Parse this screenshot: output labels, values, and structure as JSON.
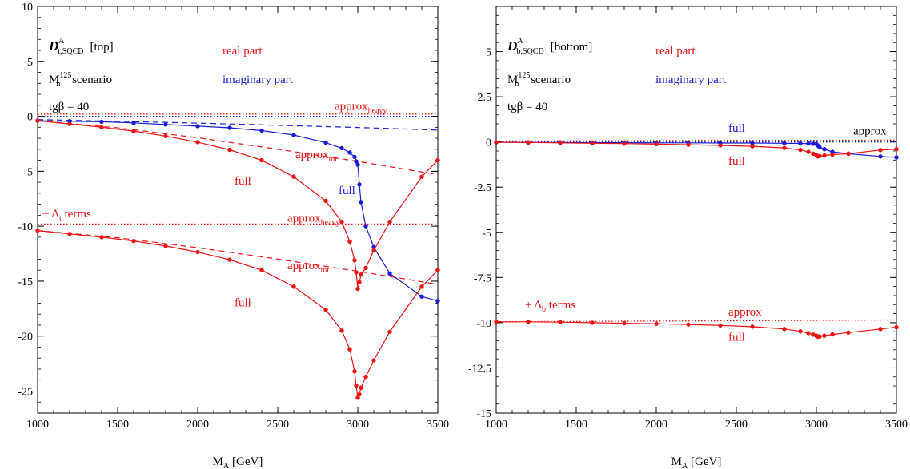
{
  "colors": {
    "real": "#ee1111",
    "imag": "#1a1ad8",
    "text": "#000000"
  },
  "chart_data": [
    {
      "type": "line",
      "panel": "left",
      "xlabel": "M_A [GeV]",
      "xlim": [
        1000,
        3500
      ],
      "ylim": [
        -27,
        10
      ],
      "xticks": [
        1000,
        1500,
        2000,
        2500,
        3000,
        3500
      ],
      "yticks": [
        10,
        5,
        0,
        -5,
        -10,
        -15,
        -20,
        -25
      ],
      "header": {
        "symbol": "D",
        "sup": "A",
        "sub": "t,SQCD",
        "tag": "[top]",
        "scenario_main": "M",
        "scenario_sub": "h",
        "scenario_sup": "125",
        "scenario_text": " scenario",
        "tgb": "tgβ = 40",
        "legend_real": "real part",
        "legend_imag": "imaginary part"
      },
      "annotations": [
        {
          "id": "approx-heavy-top",
          "text": "approx",
          "sub": "heavy",
          "x": 2855,
          "y": 0.6,
          "color": "real"
        },
        {
          "id": "approx-mt-top",
          "text": "approx",
          "sub": "mt",
          "x": 2610,
          "y": -3.8,
          "color": "real"
        },
        {
          "id": "full-real-top",
          "text": "full",
          "x": 2230,
          "y": -6.2,
          "color": "real"
        },
        {
          "id": "full-imag-top",
          "text": "full",
          "x": 2880,
          "y": -7.1,
          "color": "imag"
        },
        {
          "id": "delta-t-label",
          "text": "+ Δ",
          "sub": "t",
          "text_after": " terms",
          "x": 1030,
          "y": -9.2,
          "color": "real"
        },
        {
          "id": "approx-heavy-bottom",
          "text": "approx",
          "sub": "heavy",
          "x": 2560,
          "y": -9.6,
          "color": "real"
        },
        {
          "id": "approx-mt-bottom",
          "text": "approx",
          "sub": "mt",
          "x": 2560,
          "y": -13.9,
          "color": "real"
        },
        {
          "id": "full-real-bottom",
          "text": "full",
          "x": 2230,
          "y": -17.3,
          "color": "real"
        }
      ],
      "series": [
        {
          "id": "approx-heavy-real",
          "color": "real",
          "style": "dotted",
          "points": false,
          "x": [
            1000,
            3500
          ],
          "y": [
            0.2,
            0.2
          ]
        },
        {
          "id": "approx-heavy-imag",
          "color": "imag",
          "style": "dotted",
          "points": false,
          "x": [
            1000,
            3500
          ],
          "y": [
            0.0,
            0.0
          ]
        },
        {
          "id": "approx-heavy-real-delta",
          "color": "real",
          "style": "dotted",
          "points": false,
          "x": [
            1000,
            3500
          ],
          "y": [
            -9.8,
            -9.8
          ]
        },
        {
          "id": "imag-approx-mt",
          "color": "imag",
          "style": "dashed",
          "points": false,
          "x": [
            1000,
            1500,
            2000,
            2500,
            3000,
            3500
          ],
          "y": [
            -0.3,
            -0.45,
            -0.62,
            -0.82,
            -1.02,
            -1.25
          ]
        },
        {
          "id": "real-approx-mt",
          "color": "real",
          "style": "dashed",
          "points": false,
          "x": [
            1000,
            1500,
            2000,
            2500,
            3000,
            3500
          ],
          "y": [
            -0.4,
            -1.05,
            -1.95,
            -3.0,
            -4.1,
            -5.3
          ]
        },
        {
          "id": "real-approx-mt-delta",
          "color": "real",
          "style": "dashed",
          "points": false,
          "x": [
            1000,
            1500,
            2000,
            2500,
            3000,
            3500
          ],
          "y": [
            -10.4,
            -11.05,
            -11.95,
            -13.0,
            -14.1,
            -15.3
          ]
        },
        {
          "id": "imag-full",
          "color": "imag",
          "style": "solid",
          "points": true,
          "x": [
            1000,
            1200,
            1400,
            1600,
            1800,
            2000,
            2200,
            2400,
            2600,
            2800,
            2900,
            2950,
            2980,
            2990,
            3000,
            3010,
            3020,
            3050,
            3100,
            3200,
            3400,
            3500
          ],
          "y": [
            -0.4,
            -0.45,
            -0.5,
            -0.6,
            -0.75,
            -0.9,
            -1.05,
            -1.3,
            -1.7,
            -2.4,
            -2.9,
            -3.3,
            -3.7,
            -4.1,
            -4.4,
            -6.2,
            -7.8,
            -10.0,
            -11.9,
            -14.3,
            -16.4,
            -16.8
          ]
        },
        {
          "id": "real-full",
          "color": "real",
          "style": "solid",
          "points": true,
          "x": [
            1000,
            1200,
            1400,
            1600,
            1800,
            2000,
            2200,
            2400,
            2600,
            2800,
            2900,
            2950,
            2980,
            2990,
            3000,
            3010,
            3020,
            3050,
            3100,
            3200,
            3400,
            3500
          ],
          "y": [
            -0.4,
            -0.7,
            -1.0,
            -1.35,
            -1.8,
            -2.35,
            -3.05,
            -4.0,
            -5.5,
            -7.7,
            -9.6,
            -11.4,
            -13.1,
            -14.2,
            -15.7,
            -15.1,
            -14.4,
            -13.8,
            -12.2,
            -9.6,
            -5.5,
            -4.0
          ]
        },
        {
          "id": "real-full-delta",
          "color": "real",
          "style": "solid",
          "points": true,
          "x": [
            1000,
            1200,
            1400,
            1600,
            1800,
            2000,
            2200,
            2400,
            2600,
            2800,
            2900,
            2950,
            2980,
            2990,
            3000,
            3010,
            3020,
            3050,
            3100,
            3200,
            3400,
            3500
          ],
          "y": [
            -10.4,
            -10.7,
            -11.0,
            -11.35,
            -11.8,
            -12.35,
            -13.05,
            -14.0,
            -15.5,
            -17.6,
            -19.5,
            -21.2,
            -23.2,
            -24.5,
            -25.6,
            -25.3,
            -24.7,
            -23.7,
            -22.2,
            -19.6,
            -15.5,
            -14.0
          ]
        }
      ]
    },
    {
      "type": "line",
      "panel": "right",
      "xlabel": "M_A [GeV]",
      "xlim": [
        1000,
        3500
      ],
      "ylim": [
        -15,
        7.5
      ],
      "xticks": [
        1000,
        1500,
        2000,
        2500,
        3000,
        3500
      ],
      "yticks": [
        5,
        2.5,
        0,
        -2.5,
        -5,
        -7.5,
        -10,
        -12.5,
        -15
      ],
      "header": {
        "symbol": "D",
        "sup": "A",
        "sub": "b,SQCD",
        "tag": "[bottom]",
        "scenario_main": "M",
        "scenario_sub": "h",
        "scenario_sup": "125",
        "scenario_text": " scenario",
        "tgb": "tgβ = 40",
        "legend_real": "real part",
        "legend_imag": "imaginary part"
      },
      "annotations": [
        {
          "id": "full-imag-right",
          "text": "full",
          "x": 2450,
          "y": 0.55,
          "color": "imag"
        },
        {
          "id": "approx-right-top",
          "text": "approx",
          "x": 3230,
          "y": 0.4,
          "color": "text"
        },
        {
          "id": "full-real-right-top",
          "text": "full",
          "x": 2450,
          "y": -1.25,
          "color": "real"
        },
        {
          "id": "delta-b-label",
          "text": "+ Δ",
          "sub": "b",
          "text_after": " terms",
          "x": 1180,
          "y": -9.2,
          "color": "real"
        },
        {
          "id": "approx-right-bottom",
          "text": "approx",
          "x": 2450,
          "y": -9.6,
          "color": "real"
        },
        {
          "id": "full-real-right-bottom",
          "text": "full",
          "x": 2450,
          "y": -11.0,
          "color": "real"
        }
      ],
      "series": [
        {
          "id": "approx-real-right",
          "color": "real",
          "style": "dotted",
          "points": false,
          "x": [
            1000,
            3500
          ],
          "y": [
            0.05,
            0.1
          ]
        },
        {
          "id": "approx-imag-right",
          "color": "imag",
          "style": "dotted",
          "points": false,
          "x": [
            1000,
            3500
          ],
          "y": [
            0.0,
            0.0
          ]
        },
        {
          "id": "approx-real-right-delta",
          "color": "real",
          "style": "dotted",
          "points": false,
          "x": [
            1000,
            3500
          ],
          "y": [
            -9.95,
            -9.85
          ]
        },
        {
          "id": "imag-full-right",
          "color": "imag",
          "style": "solid",
          "points": true,
          "x": [
            1000,
            1200,
            1400,
            1600,
            1800,
            2000,
            2200,
            2400,
            2600,
            2800,
            2900,
            2950,
            2980,
            3000,
            3010,
            3020,
            3050,
            3100,
            3200,
            3400,
            3500
          ],
          "y": [
            -0.02,
            -0.03,
            -0.03,
            -0.04,
            -0.04,
            -0.05,
            -0.05,
            -0.06,
            -0.06,
            -0.07,
            -0.08,
            -0.09,
            -0.1,
            -0.11,
            -0.2,
            -0.3,
            -0.4,
            -0.55,
            -0.65,
            -0.8,
            -0.85
          ]
        },
        {
          "id": "real-full-right",
          "color": "real",
          "style": "solid",
          "points": true,
          "x": [
            1000,
            1200,
            1400,
            1600,
            1800,
            2000,
            2200,
            2400,
            2600,
            2800,
            2900,
            2950,
            2980,
            3000,
            3010,
            3020,
            3050,
            3100,
            3200,
            3400,
            3500
          ],
          "y": [
            -0.02,
            -0.03,
            -0.05,
            -0.07,
            -0.09,
            -0.12,
            -0.15,
            -0.19,
            -0.24,
            -0.33,
            -0.44,
            -0.55,
            -0.65,
            -0.72,
            -0.8,
            -0.78,
            -0.75,
            -0.7,
            -0.65,
            -0.45,
            -0.4
          ]
        },
        {
          "id": "real-full-right-delta",
          "color": "real",
          "style": "solid",
          "points": true,
          "x": [
            1000,
            1200,
            1400,
            1600,
            1800,
            2000,
            2200,
            2400,
            2600,
            2800,
            2900,
            2950,
            2980,
            3000,
            3010,
            3020,
            3050,
            3100,
            3200,
            3400,
            3500
          ],
          "y": [
            -9.95,
            -9.95,
            -9.97,
            -10.0,
            -10.03,
            -10.06,
            -10.1,
            -10.15,
            -10.22,
            -10.35,
            -10.48,
            -10.58,
            -10.66,
            -10.72,
            -10.78,
            -10.76,
            -10.72,
            -10.65,
            -10.55,
            -10.35,
            -10.25
          ]
        }
      ]
    }
  ]
}
